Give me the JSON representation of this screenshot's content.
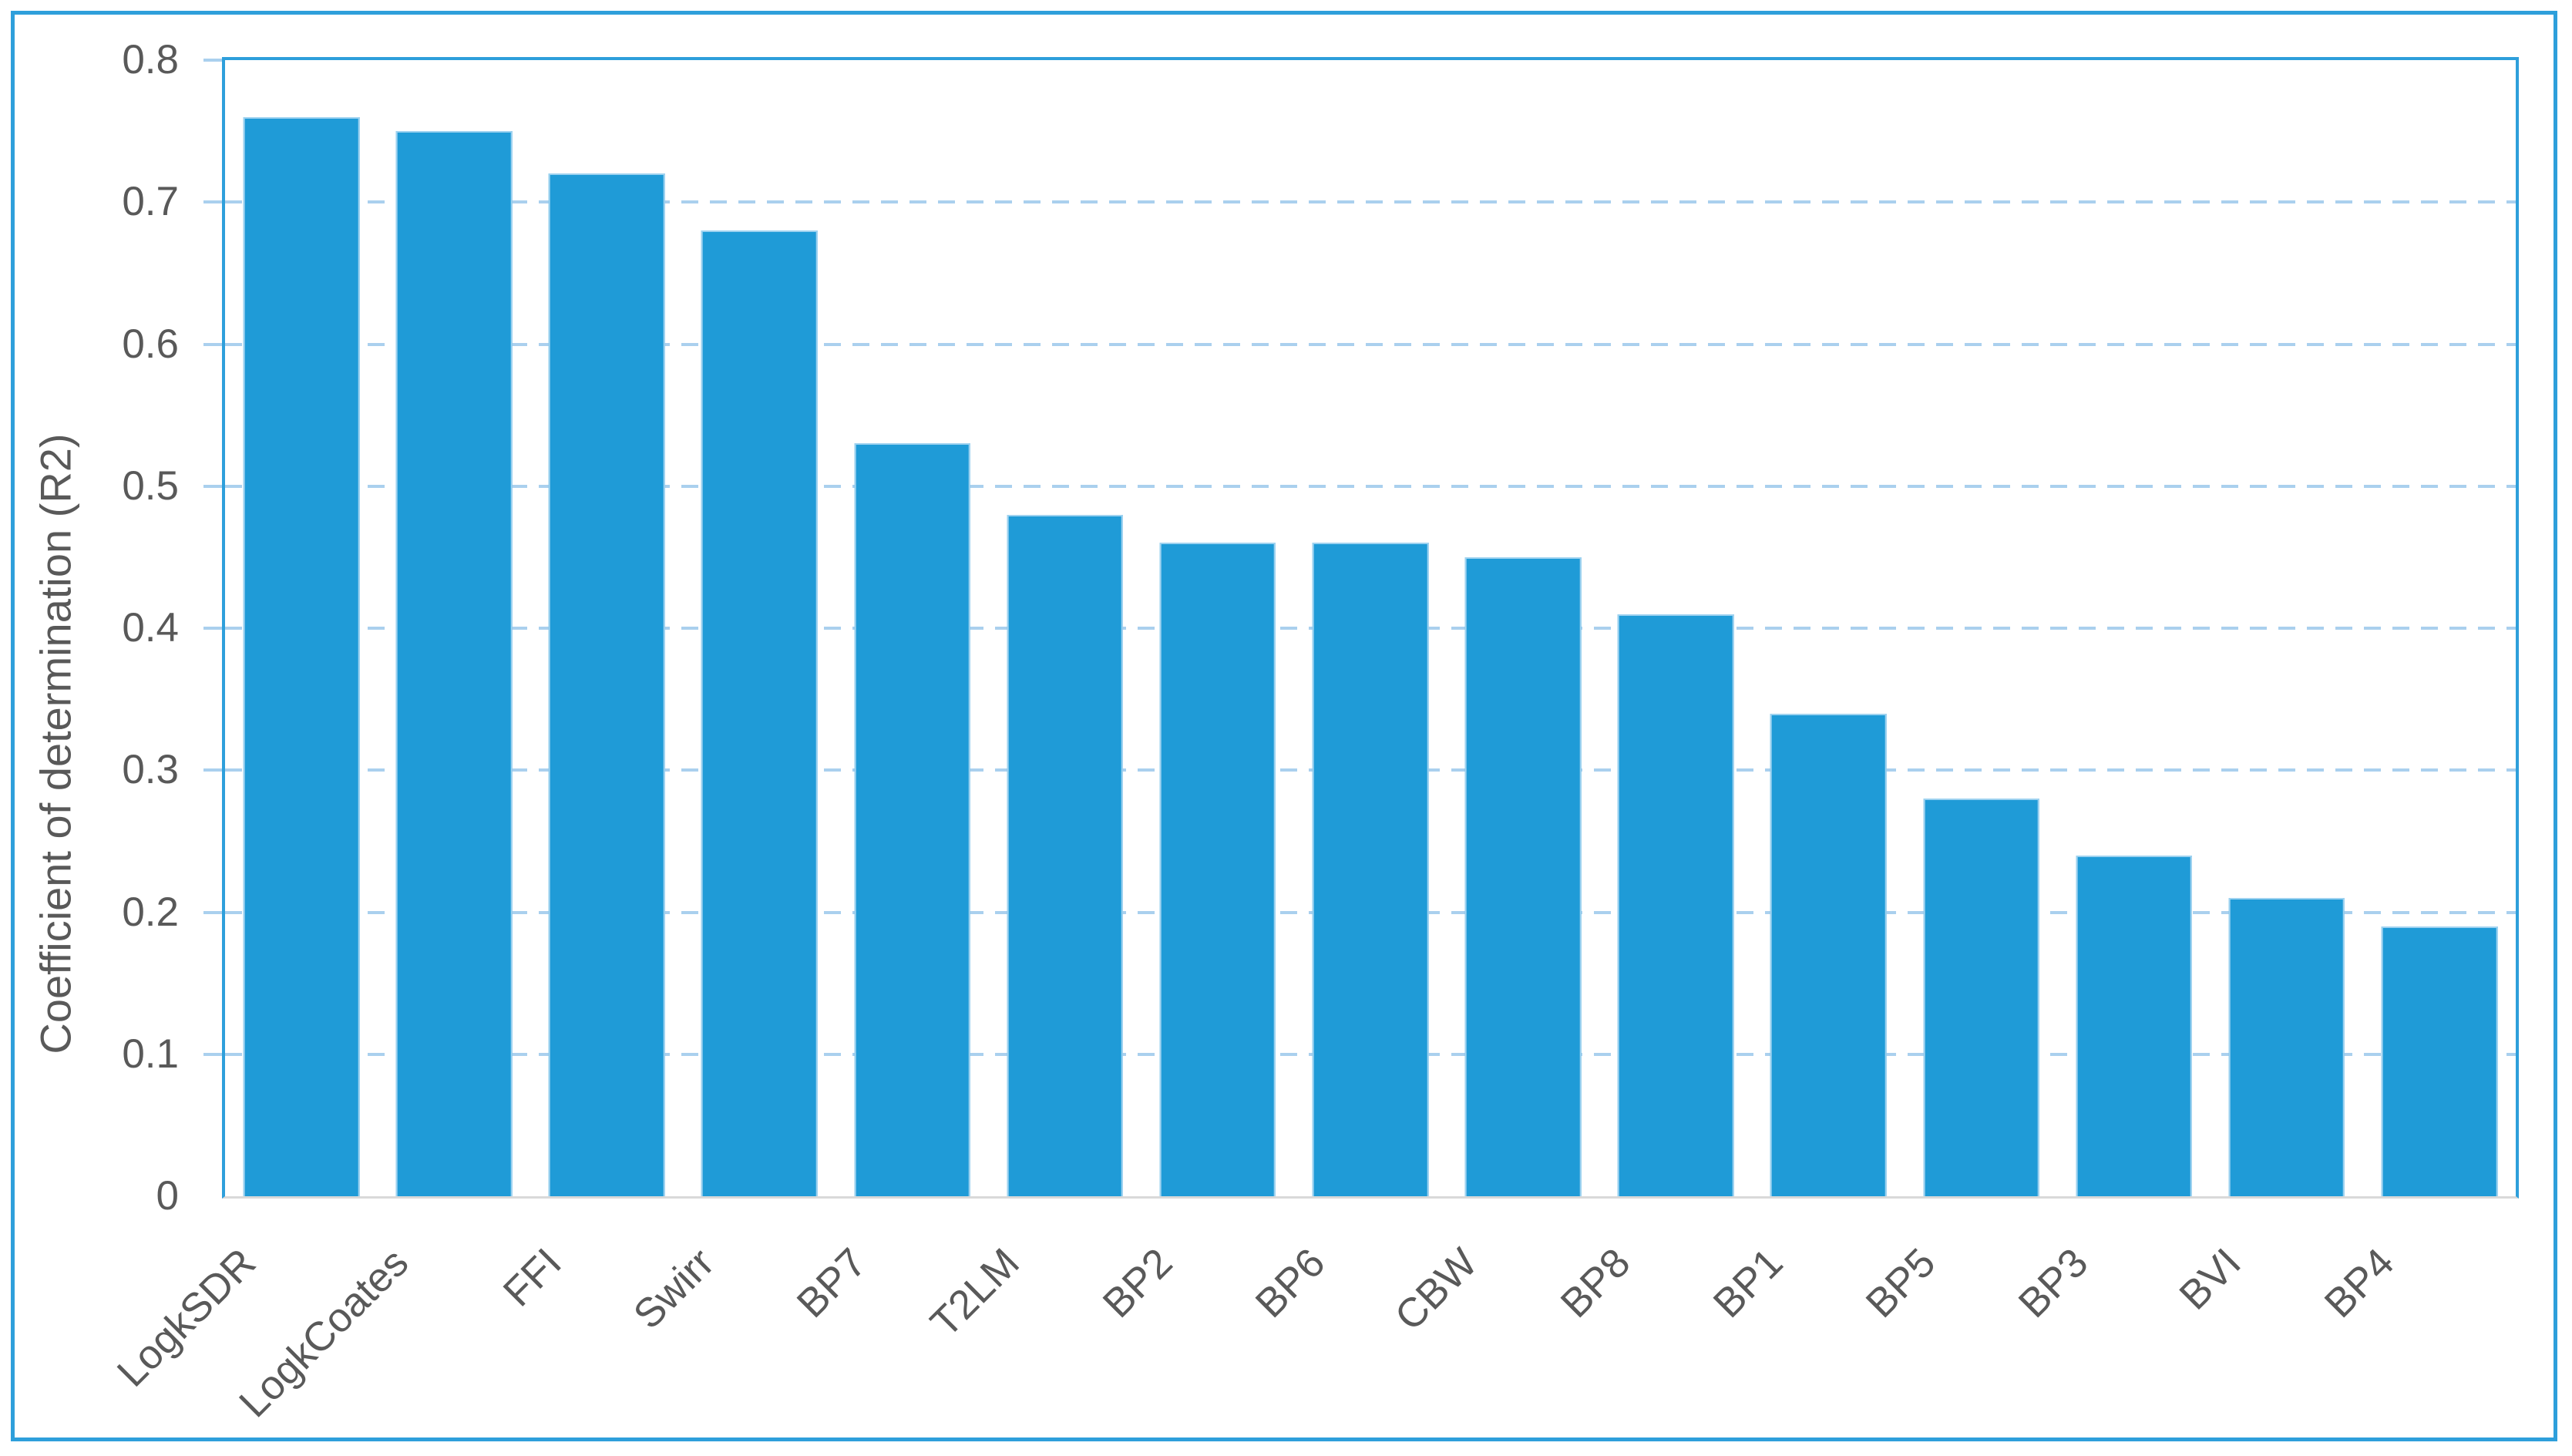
{
  "chart_data": {
    "type": "bar",
    "title": "",
    "categories": [
      "LogkSDR",
      "LogkCoates",
      "FFI",
      "Swirr",
      "BP7",
      "T2LM",
      "BP2",
      "BP6",
      "CBW",
      "BP8",
      "BP1",
      "BP5",
      "BP3",
      "BVI",
      "BP4"
    ],
    "values": [
      0.76,
      0.75,
      0.72,
      0.68,
      0.53,
      0.48,
      0.46,
      0.46,
      0.45,
      0.41,
      0.34,
      0.28,
      0.24,
      0.21,
      0.19
    ],
    "xlabel": "",
    "ylabel": "Coefficient of determination (R2)",
    "ylim": [
      0,
      0.8
    ],
    "yticks": [
      0,
      0.1,
      0.2,
      0.3,
      0.4,
      0.5,
      0.6,
      0.7,
      0.8
    ],
    "ytick_labels": [
      "0",
      "0.1",
      "0.2",
      "0.3",
      "0.4",
      "0.5",
      "0.6",
      "0.7",
      "0.8"
    ],
    "grid": "horizontal-dashed",
    "legend_position": "none"
  },
  "colors": {
    "bar_fill": "#1F9BD7",
    "bar_edge": "#9ED2F0",
    "frame_border": "#2E9FDB",
    "gridline": "#AAD0EE",
    "axis_baseline": "#D9D9D9",
    "text": "#595959"
  }
}
